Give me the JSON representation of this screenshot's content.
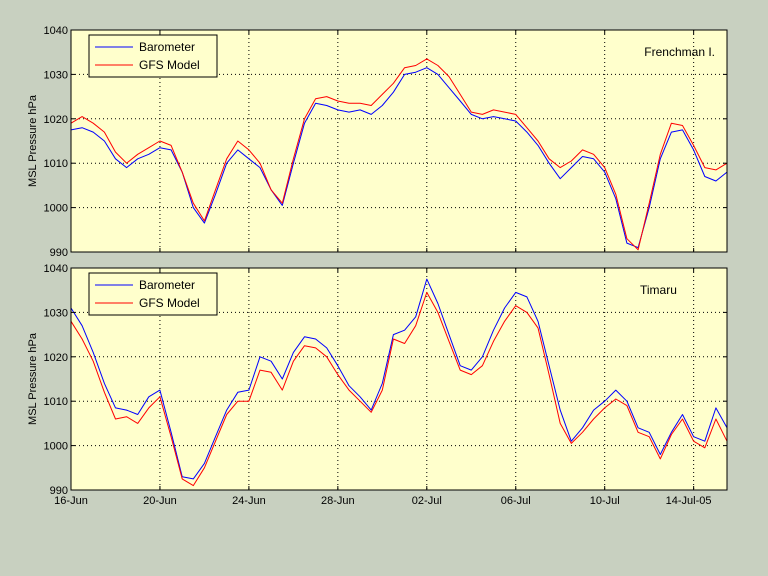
{
  "colors": {
    "figure_bg": "#c8d0c0",
    "axes_bg": "#ffffcc",
    "barometer": "#0000ff",
    "gfs_model": "#ff0000"
  },
  "chart_data": [
    {
      "type": "line",
      "location_label": "Frenchman I.",
      "ylabel": "MSL Pressure hPa",
      "ylim": [
        990,
        1040
      ],
      "yticks": [
        990,
        1000,
        1010,
        1020,
        1030,
        1040
      ],
      "xlim": [
        0,
        29.5
      ],
      "xticks": [
        0,
        4,
        8,
        12,
        16,
        20,
        24,
        28
      ],
      "xtick_labels": [
        "16-Jun",
        "20-Jun",
        "24-Jun",
        "28-Jun",
        "02-Jul",
        "06-Jul",
        "10-Jul",
        "14-Jul-05"
      ],
      "show_xtick_labels": false,
      "grid": true,
      "legend_position": "top-left",
      "series": [
        {
          "name": "Barometer",
          "color": "#0000ff",
          "x": [
            0,
            0.5,
            1,
            1.5,
            2,
            2.5,
            3,
            3.5,
            4,
            4.5,
            5,
            5.5,
            6,
            6.5,
            7,
            7.5,
            8,
            8.5,
            9,
            9.5,
            10,
            10.5,
            11,
            11.5,
            12,
            12.5,
            13,
            13.5,
            14,
            14.5,
            15,
            15.5,
            16,
            16.5,
            17,
            17.5,
            18,
            18.5,
            19,
            19.5,
            20,
            20.5,
            21,
            21.5,
            22,
            22.5,
            23,
            23.5,
            24,
            24.5,
            25,
            25.5,
            26,
            26.5,
            27,
            27.5,
            28,
            28.5,
            29,
            29.5
          ],
          "y": [
            1017.5,
            1018,
            1017,
            1015,
            1011,
            1009,
            1011,
            1012,
            1013.5,
            1013,
            1008,
            1000,
            996.5,
            1003,
            1010,
            1013,
            1011,
            1009,
            1004,
            1000.5,
            1010,
            1019,
            1023.5,
            1023,
            1022,
            1021.5,
            1022,
            1021,
            1023,
            1026,
            1030,
            1030.5,
            1031.5,
            1030,
            1027,
            1024,
            1021,
            1020,
            1020.5,
            1020,
            1019.5,
            1017,
            1014,
            1010,
            1006.5,
            1009,
            1011.5,
            1011,
            1008,
            1002,
            992,
            991,
            1000,
            1011,
            1017,
            1017.5,
            1013,
            1007,
            1006,
            1008
          ]
        },
        {
          "name": "GFS Model",
          "color": "#ff0000",
          "x": [
            0,
            0.5,
            1,
            1.5,
            2,
            2.5,
            3,
            3.5,
            4,
            4.5,
            5,
            5.5,
            6,
            6.5,
            7,
            7.5,
            8,
            8.5,
            9,
            9.5,
            10,
            10.5,
            11,
            11.5,
            12,
            12.5,
            13,
            13.5,
            14,
            14.5,
            15,
            15.5,
            16,
            16.5,
            17,
            17.5,
            18,
            18.5,
            19,
            19.5,
            20,
            20.5,
            21,
            21.5,
            22,
            22.5,
            23,
            23.5,
            24,
            24.5,
            25,
            25.5,
            26,
            26.5,
            27,
            27.5,
            28,
            28.5,
            29,
            29.5
          ],
          "y": [
            1019,
            1020.5,
            1019,
            1017,
            1012.5,
            1010,
            1012,
            1013.5,
            1015,
            1014,
            1008,
            1001,
            997,
            1004,
            1011,
            1015,
            1013,
            1010,
            1004,
            1001,
            1011,
            1020,
            1024.5,
            1025,
            1024,
            1023.5,
            1023.5,
            1023,
            1025.5,
            1028,
            1031.5,
            1032,
            1033.5,
            1032,
            1029.5,
            1025.5,
            1021.5,
            1021,
            1022,
            1021.5,
            1021,
            1018,
            1015,
            1011,
            1009,
            1010.5,
            1013,
            1012,
            1009,
            1003,
            993,
            990.5,
            1001,
            1012,
            1019,
            1018.5,
            1014,
            1009,
            1008.5,
            1010
          ]
        }
      ]
    },
    {
      "type": "line",
      "location_label": "Timaru",
      "ylabel": "MSL Pressure hPa",
      "ylim": [
        990,
        1040
      ],
      "yticks": [
        990,
        1000,
        1010,
        1020,
        1030,
        1040
      ],
      "xlim": [
        0,
        29.5
      ],
      "xticks": [
        0,
        4,
        8,
        12,
        16,
        20,
        24,
        28
      ],
      "xtick_labels": [
        "16-Jun",
        "20-Jun",
        "24-Jun",
        "28-Jun",
        "02-Jul",
        "06-Jul",
        "10-Jul",
        "14-Jul-05"
      ],
      "show_xtick_labels": true,
      "grid": true,
      "legend_position": "top-left",
      "series": [
        {
          "name": "Barometer",
          "color": "#0000ff",
          "x": [
            0,
            0.5,
            1,
            1.5,
            2,
            2.5,
            3,
            3.5,
            4,
            4.5,
            5,
            5.5,
            6,
            6.5,
            7,
            7.5,
            8,
            8.5,
            9,
            9.5,
            10,
            10.5,
            11,
            11.5,
            12,
            12.5,
            13,
            13.5,
            14,
            14.5,
            15,
            15.5,
            16,
            16.5,
            17,
            17.5,
            18,
            18.5,
            19,
            19.5,
            20,
            20.5,
            21,
            21.5,
            22,
            22.5,
            23,
            23.5,
            24,
            24.5,
            25,
            25.5,
            26,
            26.5,
            27,
            27.5,
            28,
            28.5,
            29,
            29.5
          ],
          "y": [
            1031,
            1027,
            1021,
            1014,
            1008.5,
            1008,
            1007,
            1011,
            1012.5,
            1003,
            993,
            992.5,
            996,
            1002,
            1008,
            1012,
            1012.5,
            1020,
            1019,
            1015,
            1021,
            1024.5,
            1024,
            1022,
            1018,
            1013.5,
            1011,
            1008,
            1014,
            1025,
            1026,
            1029,
            1037.5,
            1032,
            1025,
            1018,
            1017,
            1020,
            1026,
            1031,
            1034.5,
            1033.5,
            1028,
            1018,
            1008,
            1001,
            1004,
            1008,
            1010,
            1012.5,
            1010,
            1004,
            1003,
            998,
            1003,
            1007,
            1002,
            1001,
            1008.5,
            1004
          ]
        },
        {
          "name": "GFS Model",
          "color": "#ff0000",
          "x": [
            0,
            0.5,
            1,
            1.5,
            2,
            2.5,
            3,
            3.5,
            4,
            4.5,
            5,
            5.5,
            6,
            6.5,
            7,
            7.5,
            8,
            8.5,
            9,
            9.5,
            10,
            10.5,
            11,
            11.5,
            12,
            12.5,
            13,
            13.5,
            14,
            14.5,
            15,
            15.5,
            16,
            16.5,
            17,
            17.5,
            18,
            18.5,
            19,
            19.5,
            20,
            20.5,
            21,
            21.5,
            22,
            22.5,
            23,
            23.5,
            24,
            24.5,
            25,
            25.5,
            26,
            26.5,
            27,
            27.5,
            28,
            28.5,
            29,
            29.5
          ],
          "y": [
            1028,
            1024,
            1019,
            1012,
            1006,
            1006.5,
            1005,
            1008.5,
            1011,
            1002,
            992.5,
            991,
            995,
            1001,
            1007,
            1010,
            1010,
            1017,
            1016.5,
            1012.5,
            1019,
            1022.5,
            1022,
            1020,
            1016,
            1012.5,
            1010,
            1007.5,
            1012.5,
            1024,
            1023,
            1027,
            1034.5,
            1030,
            1023.5,
            1017,
            1016,
            1018,
            1023.5,
            1028,
            1031.5,
            1030,
            1026.5,
            1016,
            1005,
            1000.5,
            1003,
            1006,
            1008.5,
            1010.5,
            1009,
            1003,
            1002,
            997,
            1002.5,
            1006,
            1001,
            999.5,
            1006,
            1001
          ]
        }
      ]
    }
  ]
}
